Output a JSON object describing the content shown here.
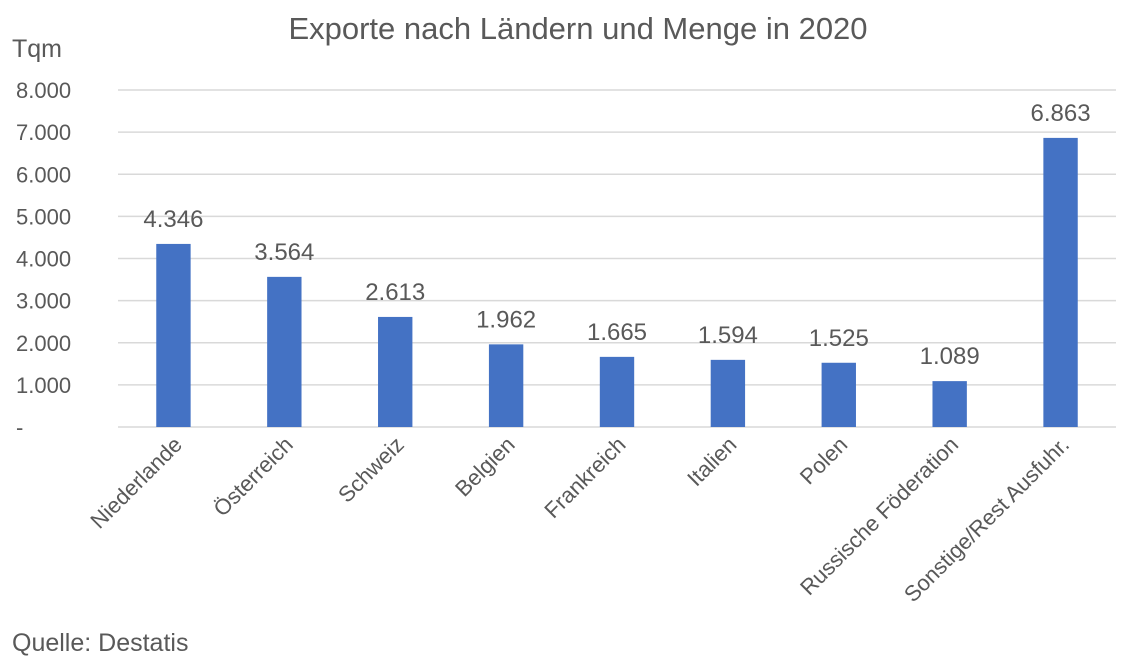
{
  "chart_data": {
    "type": "bar",
    "title": "Exporte nach Ländern und Menge in 2020",
    "ylabel": "Tqm",
    "xlabel": "",
    "categories": [
      "Niederlande",
      "Österreich",
      "Schweiz",
      "Belgien",
      "Frankreich",
      "Italien",
      "Polen",
      "Russische Föderation",
      "Sonstige/Rest Ausfuhr."
    ],
    "values": [
      4346,
      3564,
      2613,
      1962,
      1665,
      1594,
      1525,
      1089,
      6863
    ],
    "data_labels": [
      "4.346",
      "3.564",
      "2.613",
      "1.962",
      "1.665",
      "1.594",
      "1.525",
      "1.089",
      "6.863"
    ],
    "ylim": [
      0,
      8000
    ],
    "yticks": [
      0,
      1000,
      2000,
      3000,
      4000,
      5000,
      6000,
      7000,
      8000
    ],
    "ytick_labels": [
      "-",
      "1.000",
      "2.000",
      "3.000",
      "4.000",
      "5.000",
      "6.000",
      "7.000",
      "8.000"
    ],
    "grid": true,
    "legend": "none",
    "bar_color": "#4472c4",
    "source": "Quelle: Destatis"
  }
}
